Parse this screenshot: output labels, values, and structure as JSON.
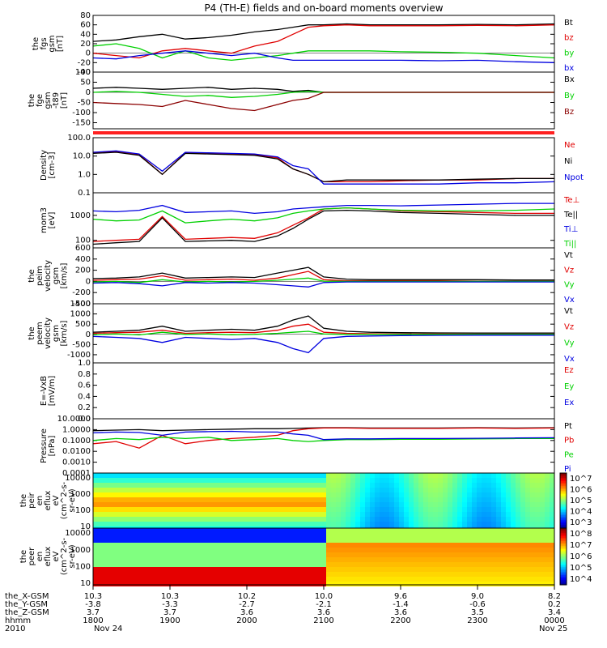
{
  "title": "P4 (TH-E) fields and on-board moments overview",
  "year": "2010",
  "start_date": "Nov 24",
  "end_date": "Nov 25",
  "colors": {
    "black": "#000000",
    "red": "#e00000",
    "green": "#00d000",
    "blue": "#0000e0",
    "darkred": "#8b0000",
    "status_bar": "#ff2020"
  },
  "xaxis": {
    "row_labels": [
      "the_X-GSM",
      "the_Y-GSM",
      "the_Z-GSM",
      "hhmm"
    ],
    "ticks": [
      {
        "x_gsm": "10.3",
        "y_gsm": "-3.8",
        "z_gsm": "3.7",
        "hhmm": "1800"
      },
      {
        "x_gsm": "10.3",
        "y_gsm": "-3.3",
        "z_gsm": "3.7",
        "hhmm": "1900"
      },
      {
        "x_gsm": "10.2",
        "y_gsm": "-2.7",
        "z_gsm": "3.6",
        "hhmm": "2000"
      },
      {
        "x_gsm": "10.0",
        "y_gsm": "-2.1",
        "z_gsm": "3.6",
        "hhmm": "2100"
      },
      {
        "x_gsm": "9.6",
        "y_gsm": "-1.4",
        "z_gsm": "3.6",
        "hhmm": "2200"
      },
      {
        "x_gsm": "9.0",
        "y_gsm": "-0.6",
        "z_gsm": "3.5",
        "hhmm": "2300"
      },
      {
        "x_gsm": "8.2",
        "y_gsm": "0.2",
        "z_gsm": "3.4",
        "hhmm": "0000"
      }
    ]
  },
  "chart_data": [
    {
      "type": "line",
      "ylabel_lines": [
        "the",
        "fgs",
        "gsm",
        "[nT]"
      ],
      "yticks": [
        "80",
        "60",
        "40",
        "20",
        "0",
        "-20",
        "-40"
      ],
      "ylim": [
        -40,
        80
      ],
      "x": [
        18.0,
        18.3,
        18.6,
        18.9,
        19.2,
        19.5,
        19.8,
        20.1,
        20.4,
        20.6,
        20.8,
        21.0,
        21.3,
        21.6,
        22.0,
        22.5,
        23.0,
        23.5,
        24.0
      ],
      "series": [
        {
          "name": "Bt",
          "color": "black",
          "values": [
            25,
            28,
            35,
            40,
            30,
            33,
            38,
            45,
            50,
            55,
            60,
            60,
            62,
            60,
            60,
            60,
            61,
            60,
            62
          ]
        },
        {
          "name": "bz",
          "color": "red",
          "values": [
            0,
            -5,
            -10,
            5,
            10,
            5,
            0,
            15,
            25,
            40,
            55,
            58,
            60,
            58,
            58,
            58,
            59,
            58,
            60
          ]
        },
        {
          "name": "by",
          "color": "green",
          "values": [
            15,
            20,
            10,
            -10,
            5,
            -10,
            -15,
            -10,
            -5,
            0,
            5,
            5,
            5,
            5,
            3,
            2,
            0,
            -5,
            -10
          ]
        },
        {
          "name": "bx",
          "color": "blue",
          "values": [
            -10,
            -12,
            -5,
            0,
            5,
            0,
            -5,
            0,
            -10,
            -15,
            -15,
            -15,
            -15,
            -15,
            -15,
            -16,
            -15,
            -18,
            -20
          ]
        }
      ]
    },
    {
      "type": "line",
      "ylabel_lines": [
        "the",
        "fge",
        "gsm",
        "-t89",
        "[nT]"
      ],
      "yticks": [
        "100",
        "50",
        "0",
        "-50",
        "-100",
        "-150"
      ],
      "ylim": [
        -180,
        100
      ],
      "x": [
        18.0,
        18.3,
        18.6,
        18.9,
        19.2,
        19.5,
        19.8,
        20.1,
        20.4,
        20.6,
        20.8,
        21.0,
        21.3,
        21.6,
        22.0,
        22.5,
        23.0,
        23.5,
        24.0
      ],
      "series": [
        {
          "name": "Bx",
          "color": "black",
          "values": [
            20,
            25,
            20,
            15,
            20,
            25,
            15,
            20,
            15,
            5,
            10,
            0,
            0,
            0,
            0,
            0,
            0,
            0,
            0
          ]
        },
        {
          "name": "By",
          "color": "green",
          "values": [
            0,
            5,
            0,
            -10,
            -20,
            -15,
            -25,
            -20,
            -10,
            0,
            5,
            0,
            0,
            0,
            0,
            0,
            0,
            0,
            0
          ]
        },
        {
          "name": "Bz",
          "color": "darkred",
          "values": [
            -50,
            -55,
            -60,
            -70,
            -40,
            -60,
            -80,
            -90,
            -60,
            -40,
            -30,
            0,
            0,
            0,
            0,
            0,
            0,
            0,
            0
          ]
        }
      ]
    },
    {
      "type": "line",
      "ylabel_lines": [
        "Density",
        "[cm-3]"
      ],
      "yticks": [
        "100.0",
        "10.0",
        "1.0",
        "0.1"
      ],
      "yscale": "log",
      "ylim": [
        0.1,
        100
      ],
      "x": [
        18.0,
        18.3,
        18.6,
        18.9,
        19.2,
        19.5,
        19.8,
        20.1,
        20.4,
        20.6,
        20.8,
        21.0,
        21.3,
        21.6,
        22.0,
        22.5,
        23.0,
        23.5,
        24.0
      ],
      "series": [
        {
          "name": "Ne",
          "color": "red",
          "values": [
            15,
            18,
            12,
            1,
            15,
            14,
            13,
            12,
            8,
            2,
            1,
            0.4,
            0.4,
            0.4,
            0.45,
            0.5,
            0.5,
            0.6,
            0.6
          ]
        },
        {
          "name": "Ni",
          "color": "black",
          "values": [
            14,
            16,
            11,
            1,
            14,
            13,
            12,
            11,
            7,
            2,
            1,
            0.4,
            0.5,
            0.5,
            0.5,
            0.5,
            0.55,
            0.6,
            0.6
          ]
        },
        {
          "name": "Npot",
          "color": "blue",
          "values": [
            16,
            19,
            13,
            1.5,
            16,
            15,
            14,
            13,
            9,
            3,
            2,
            0.3,
            0.3,
            0.3,
            0.3,
            0.3,
            0.35,
            0.35,
            0.4
          ]
        }
      ]
    },
    {
      "type": "line",
      "ylabel_lines": [
        "mom3",
        "[eV]"
      ],
      "yticks": [
        "1000",
        "100"
      ],
      "yscale": "log",
      "ylim": [
        50,
        8000
      ],
      "x": [
        18.0,
        18.3,
        18.6,
        18.9,
        19.2,
        19.5,
        19.8,
        20.1,
        20.4,
        20.6,
        20.8,
        21.0,
        21.3,
        21.6,
        22.0,
        22.5,
        23.0,
        23.5,
        24.0
      ],
      "series": [
        {
          "name": "Te⊥",
          "color": "red",
          "values": [
            90,
            100,
            110,
            900,
            110,
            120,
            130,
            120,
            200,
            400,
            800,
            1800,
            2000,
            1800,
            1500,
            1400,
            1300,
            1200,
            1200
          ]
        },
        {
          "name": "Te||",
          "color": "black",
          "values": [
            70,
            80,
            90,
            800,
            90,
            95,
            100,
            90,
            150,
            300,
            700,
            1500,
            1600,
            1500,
            1300,
            1200,
            1100,
            1000,
            1000
          ]
        },
        {
          "name": "Ti⊥",
          "color": "blue",
          "values": [
            1500,
            1400,
            1600,
            2500,
            1300,
            1400,
            1500,
            1200,
            1400,
            1800,
            2000,
            2200,
            2500,
            2500,
            2400,
            2600,
            2800,
            3000,
            3000
          ]
        },
        {
          "name": "Ti||",
          "color": "green",
          "values": [
            700,
            600,
            650,
            1500,
            500,
            600,
            700,
            600,
            800,
            1200,
            1500,
            1800,
            2000,
            1800,
            1600,
            1500,
            1500,
            1600,
            1800
          ]
        }
      ]
    },
    {
      "type": "line",
      "ylabel_lines": [
        "the",
        "peim",
        "velocity",
        "gsm",
        "[km/s]"
      ],
      "yticks": [
        "600",
        "400",
        "200",
        "0",
        "-200",
        "-400"
      ],
      "ylim": [
        -400,
        600
      ],
      "x": [
        18.0,
        18.3,
        18.6,
        18.9,
        19.2,
        19.5,
        19.8,
        20.1,
        20.4,
        20.6,
        20.8,
        21.0,
        21.3,
        21.6,
        22.0,
        22.5,
        23.0,
        23.5,
        24.0
      ],
      "series": [
        {
          "name": "Vt",
          "color": "black",
          "values": [
            50,
            60,
            80,
            150,
            60,
            70,
            80,
            70,
            150,
            200,
            250,
            80,
            40,
            30,
            30,
            30,
            30,
            25,
            25
          ]
        },
        {
          "name": "Vz",
          "color": "red",
          "values": [
            20,
            30,
            40,
            100,
            20,
            30,
            40,
            20,
            60,
            120,
            180,
            30,
            10,
            10,
            10,
            10,
            5,
            5,
            5
          ]
        },
        {
          "name": "Vy",
          "color": "green",
          "values": [
            -10,
            0,
            -20,
            30,
            -10,
            0,
            -10,
            0,
            20,
            40,
            60,
            5,
            0,
            0,
            0,
            0,
            0,
            0,
            0
          ]
        },
        {
          "name": "Vx",
          "color": "blue",
          "values": [
            -30,
            -20,
            -40,
            -80,
            -20,
            -30,
            -20,
            -30,
            -60,
            -80,
            -100,
            -20,
            -10,
            -10,
            -10,
            -10,
            -10,
            -10,
            -10
          ]
        }
      ]
    },
    {
      "type": "line",
      "ylabel_lines": [
        "the",
        "peem",
        "velocity",
        "gsm",
        "[km/s]"
      ],
      "yticks": [
        "1500",
        "1000",
        "500",
        "0",
        "-500",
        "-1000"
      ],
      "ylim": [
        -1400,
        1500
      ],
      "x": [
        18.0,
        18.3,
        18.6,
        18.9,
        19.2,
        19.5,
        19.8,
        20.1,
        20.4,
        20.6,
        20.8,
        21.0,
        21.3,
        21.6,
        22.0,
        22.5,
        23.0,
        23.5,
        24.0
      ],
      "series": [
        {
          "name": "Vt",
          "color": "black",
          "values": [
            100,
            150,
            200,
            400,
            150,
            200,
            250,
            200,
            400,
            700,
            900,
            300,
            150,
            100,
            80,
            70,
            60,
            60,
            60
          ]
        },
        {
          "name": "Vz",
          "color": "red",
          "values": [
            50,
            80,
            100,
            200,
            50,
            80,
            100,
            80,
            200,
            400,
            500,
            100,
            50,
            30,
            20,
            20,
            10,
            10,
            10
          ]
        },
        {
          "name": "Vy",
          "color": "green",
          "values": [
            -20,
            20,
            -30,
            100,
            0,
            20,
            -20,
            0,
            50,
            100,
            150,
            20,
            0,
            0,
            0,
            0,
            0,
            0,
            0
          ]
        },
        {
          "name": "Vx",
          "color": "blue",
          "values": [
            -100,
            -150,
            -200,
            -400,
            -150,
            -200,
            -250,
            -200,
            -400,
            -700,
            -900,
            -200,
            -100,
            -80,
            -60,
            -50,
            -40,
            -40,
            -40
          ]
        }
      ]
    },
    {
      "type": "line",
      "ylabel_lines": [
        "E=-VxB",
        "[mV/m]"
      ],
      "yticks": [
        "1.0",
        "0.8",
        "0.6",
        "0.4",
        "0.2",
        "0.0"
      ],
      "ylim": [
        0,
        1
      ],
      "x": [],
      "series": [
        {
          "name": "Ez",
          "color": "red",
          "values": []
        },
        {
          "name": "Ey",
          "color": "green",
          "values": []
        },
        {
          "name": "Ex",
          "color": "blue",
          "values": []
        }
      ]
    },
    {
      "type": "line",
      "ylabel_lines": [
        "Pressure",
        "[nPa]"
      ],
      "yticks": [
        "10.0000",
        "1.0000",
        "0.1000",
        "0.0100",
        "0.0010",
        "0.0001"
      ],
      "yscale": "log",
      "ylim": [
        0.0001,
        10
      ],
      "x": [
        18.0,
        18.3,
        18.6,
        18.9,
        19.2,
        19.5,
        19.8,
        20.1,
        20.4,
        20.6,
        20.8,
        21.0,
        21.3,
        21.6,
        22.0,
        22.5,
        23.0,
        23.5,
        24.0
      ],
      "series": [
        {
          "name": "Pt",
          "color": "black",
          "values": [
            0.8,
            0.9,
            1.0,
            0.8,
            0.9,
            1.0,
            1.1,
            1.2,
            1.2,
            1.3,
            1.4,
            1.5,
            1.5,
            1.4,
            1.4,
            1.4,
            1.5,
            1.4,
            1.5
          ]
        },
        {
          "name": "Pb",
          "color": "red",
          "values": [
            0.05,
            0.08,
            0.02,
            0.3,
            0.05,
            0.1,
            0.15,
            0.2,
            0.3,
            0.8,
            1.2,
            1.4,
            1.4,
            1.3,
            1.3,
            1.3,
            1.4,
            1.3,
            1.4
          ]
        },
        {
          "name": "Pe",
          "color": "green",
          "values": [
            0.1,
            0.15,
            0.12,
            0.2,
            0.15,
            0.2,
            0.1,
            0.12,
            0.15,
            0.1,
            0.08,
            0.1,
            0.12,
            0.12,
            0.13,
            0.13,
            0.14,
            0.15,
            0.15
          ]
        },
        {
          "name": "Pi",
          "color": "blue",
          "values": [
            0.5,
            0.6,
            0.55,
            0.3,
            0.6,
            0.65,
            0.7,
            0.6,
            0.6,
            0.4,
            0.3,
            0.12,
            0.14,
            0.14,
            0.15,
            0.15,
            0.16,
            0.17,
            0.18
          ]
        }
      ]
    },
    {
      "type": "heatmap",
      "ylabel_lines": [
        "the",
        "peir",
        "en",
        "eflux",
        "eV",
        "(cm^2-s-",
        "sr-eV)"
      ],
      "yticks": [
        "10000",
        "1000",
        "100",
        "10"
      ],
      "yscale": "log",
      "ylim": [
        8,
        20000
      ],
      "colorbar_ticks": [
        "10^7",
        "10^6",
        "10^5",
        "10^4",
        "10^3"
      ]
    },
    {
      "type": "heatmap",
      "ylabel_lines": [
        "the",
        "peer",
        "en",
        "eflux",
        "eV",
        "(cm^2-s-",
        "sr-eV)"
      ],
      "yticks": [
        "10000",
        "1000",
        "100",
        "10"
      ],
      "yscale": "log",
      "ylim": [
        8,
        20000
      ],
      "colorbar_ticks": [
        "10^8",
        "10^7",
        "10^6",
        "10^5",
        "10^4"
      ]
    }
  ]
}
